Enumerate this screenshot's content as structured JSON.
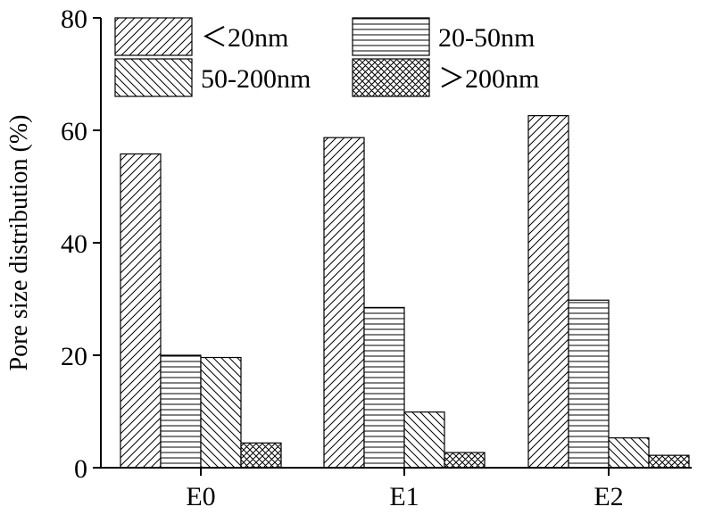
{
  "chart_data": {
    "type": "bar",
    "title": "",
    "xlabel": "",
    "ylabel": "Pore size distribution (%)",
    "ylim": [
      0,
      80
    ],
    "yticks": [
      "0",
      "20",
      "40",
      "60",
      "80"
    ],
    "categories": [
      "E0",
      "E1",
      "E2"
    ],
    "legend_position": "top-left",
    "series": [
      {
        "name": "＜20nm",
        "pattern": "diagonal-up",
        "values": [
          55.8,
          58.7,
          62.6
        ]
      },
      {
        "name": "20-50nm",
        "pattern": "horizontal",
        "values": [
          20.0,
          28.5,
          29.8
        ]
      },
      {
        "name": "50-200nm",
        "pattern": "diagonal-down",
        "values": [
          19.6,
          9.9,
          5.3
        ]
      },
      {
        "name": "＞200nm",
        "pattern": "crosshatch",
        "values": [
          4.4,
          2.7,
          2.2
        ]
      }
    ]
  }
}
